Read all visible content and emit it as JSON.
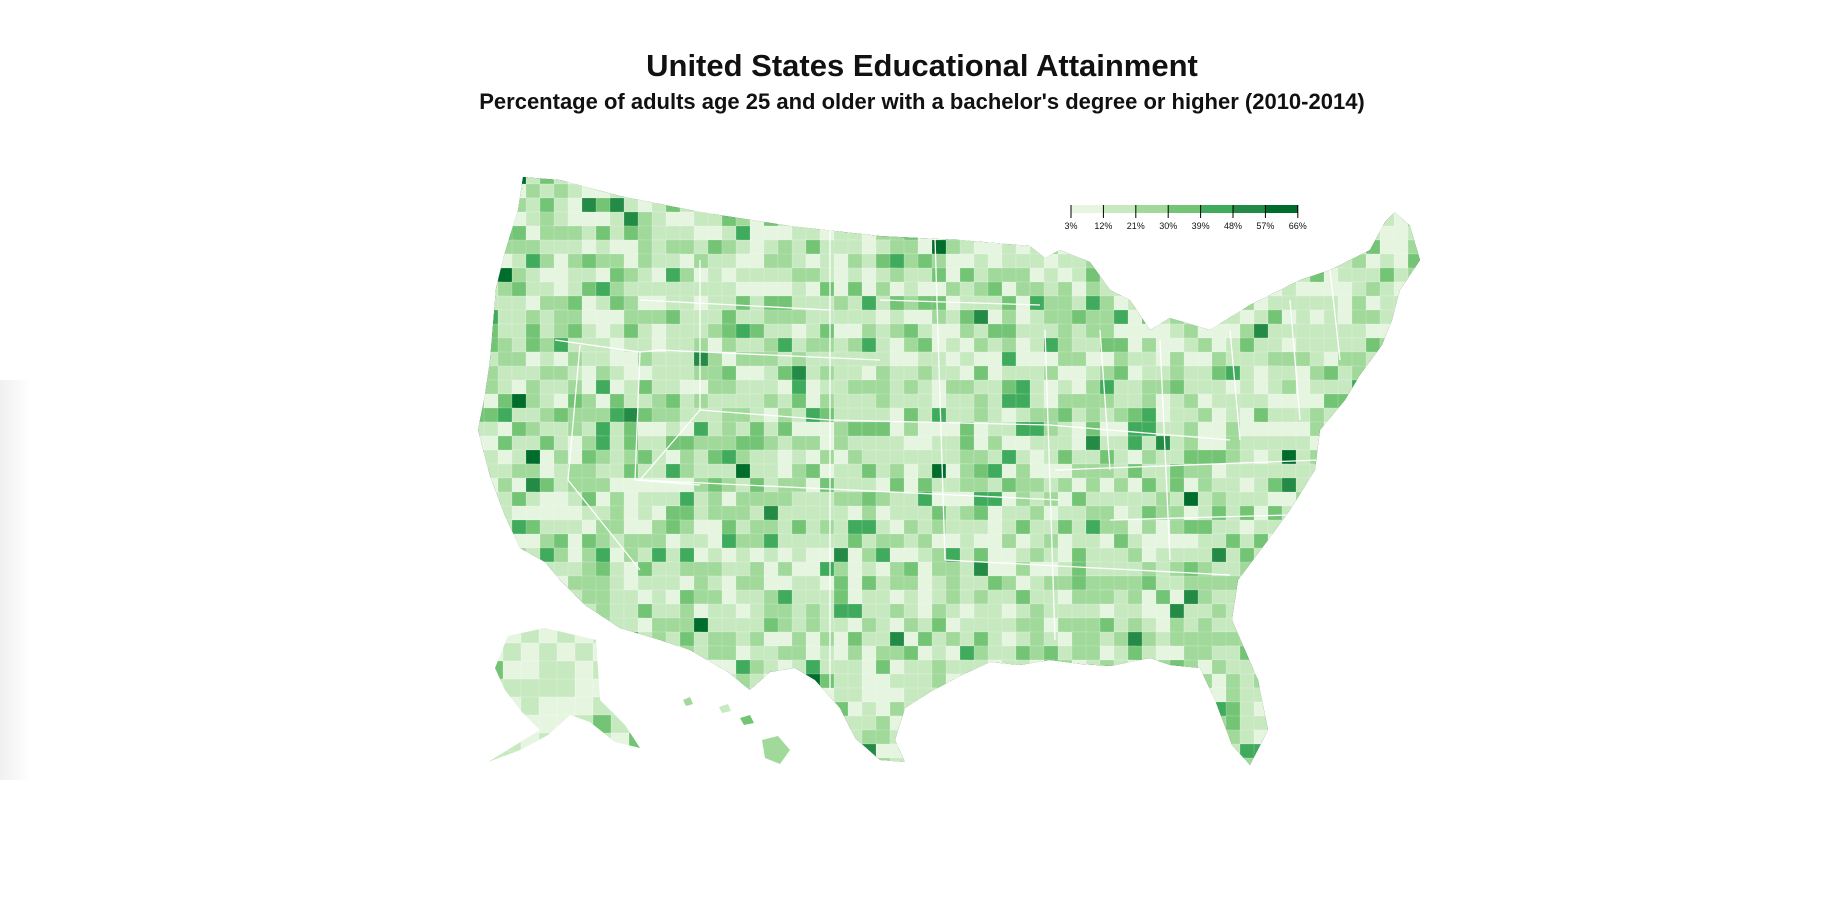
{
  "title": "United States Educational Attainment",
  "subtitle": "Percentage of adults age 25 and older with a bachelor's degree or higher (2010-2014)",
  "legend": {
    "ticks": [
      "3%",
      "12%",
      "21%",
      "30%",
      "39%",
      "48%",
      "57%",
      "66%"
    ],
    "colors": [
      "#e5f5e0",
      "#c7e9c0",
      "#a1d99b",
      "#74c476",
      "#41ab5d",
      "#238b45",
      "#006d2c"
    ]
  },
  "map": {
    "fill_light": "#e5f5e0",
    "fill_base": "#c7e9c0",
    "border_color": "#ffffff"
  }
}
